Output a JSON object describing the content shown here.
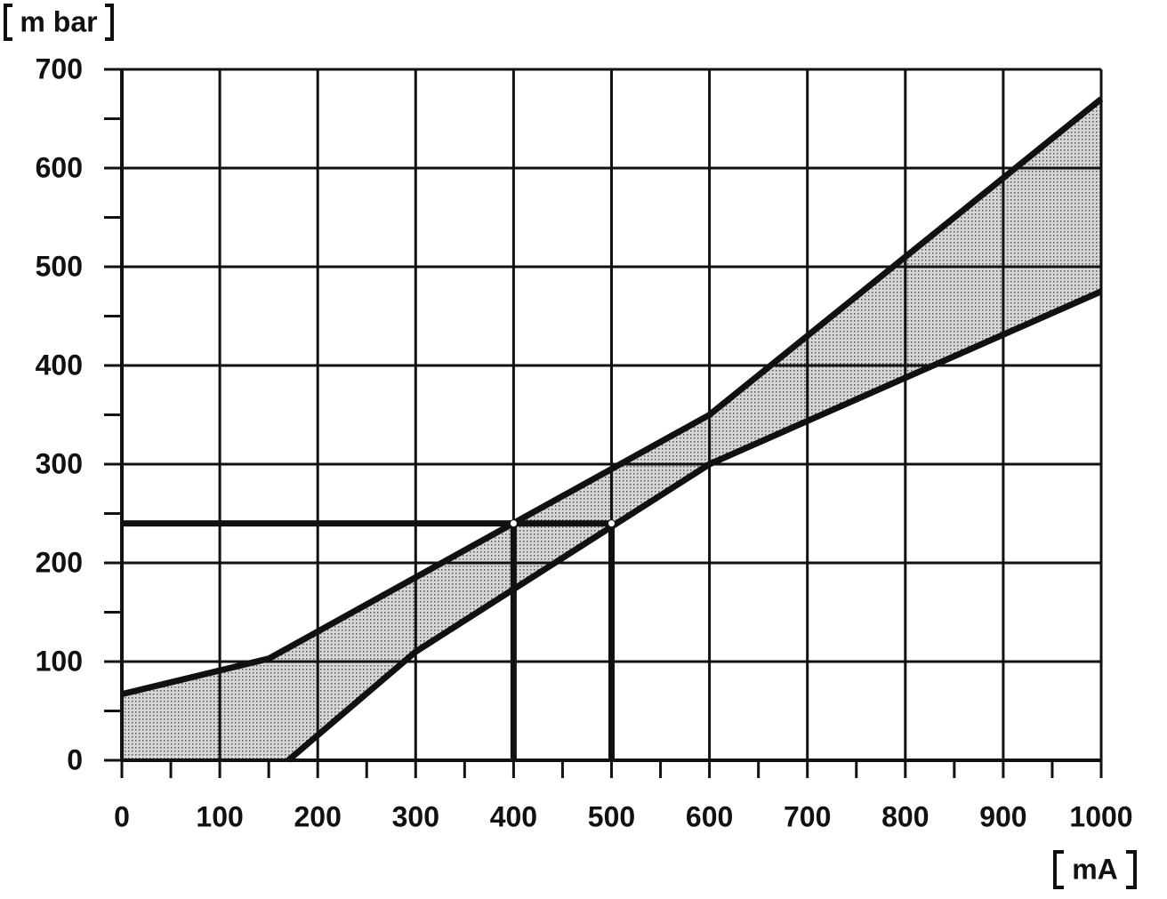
{
  "chart_data": {
    "type": "band",
    "y_label": "m bar",
    "x_label": "mA",
    "series": [
      {
        "name": "upper",
        "color": "#111111",
        "x": [
          0,
          150,
          600,
          1000
        ],
        "values": [
          67,
          103,
          350,
          670
        ]
      },
      {
        "name": "lower",
        "color": "#111111",
        "x": [
          170,
          300,
          600,
          1000
        ],
        "values": [
          0,
          110,
          300,
          475
        ]
      }
    ],
    "band_color": "#bdbdbd",
    "reference_lines": {
      "y": 240,
      "x": [
        400,
        500
      ]
    },
    "xlim": [
      0,
      1000
    ],
    "xticks": [
      0,
      100,
      200,
      300,
      400,
      500,
      600,
      700,
      800,
      900,
      1000
    ],
    "ylim": [
      0,
      700
    ],
    "yticks": [
      0,
      100,
      200,
      300,
      400,
      500,
      600,
      700
    ],
    "grid": true
  }
}
